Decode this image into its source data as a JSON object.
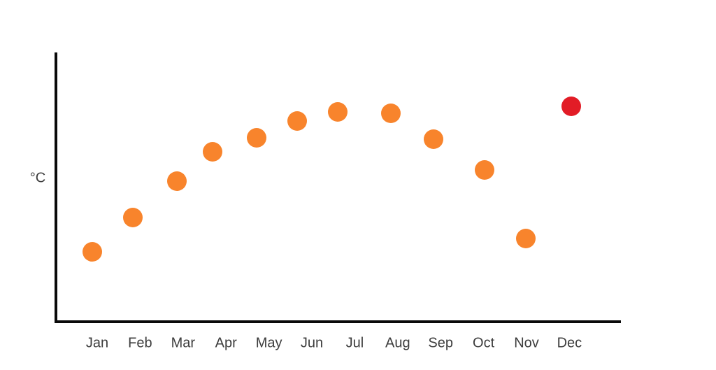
{
  "chart_data": {
    "type": "scatter",
    "title": "",
    "xlabel": "",
    "y_axis_label": "°C",
    "x_tick_labels": [
      "Jan",
      "Feb",
      "Mar",
      "Apr",
      "May",
      "Jun",
      "Jul",
      "Aug",
      "Sep",
      "Oct",
      "Nov",
      "Dec"
    ],
    "y_tick_labels_visible": false,
    "grid": false,
    "legend": false,
    "ylim": [
      0,
      30
    ],
    "y_values_estimated": true,
    "points": [
      {
        "month": "Jan",
        "x": 0.89,
        "value_c": 7.8,
        "color": "#F8842C",
        "highlighted": false
      },
      {
        "month": "Feb",
        "x": 1.83,
        "value_c": 11.6,
        "color": "#F8842C",
        "highlighted": false
      },
      {
        "month": "Mar",
        "x": 2.86,
        "value_c": 15.7,
        "color": "#F8842C",
        "highlighted": false
      },
      {
        "month": "Apr",
        "x": 3.69,
        "value_c": 18.9,
        "color": "#F8842C",
        "highlighted": false
      },
      {
        "month": "May",
        "x": 4.71,
        "value_c": 20.5,
        "color": "#F8842C",
        "highlighted": false
      },
      {
        "month": "Jun",
        "x": 5.66,
        "value_c": 22.4,
        "color": "#F8842C",
        "highlighted": false
      },
      {
        "month": "Jul",
        "x": 6.6,
        "value_c": 23.4,
        "color": "#F8842C",
        "highlighted": false
      },
      {
        "month": "Aug",
        "x": 7.84,
        "value_c": 23.2,
        "color": "#F8842C",
        "highlighted": false
      },
      {
        "month": "Sep",
        "x": 8.83,
        "value_c": 20.3,
        "color": "#F8842C",
        "highlighted": false
      },
      {
        "month": "Oct",
        "x": 10.02,
        "value_c": 16.9,
        "color": "#F8842C",
        "highlighted": false
      },
      {
        "month": "Nov",
        "x": 10.98,
        "value_c": 9.3,
        "color": "#F8842C",
        "highlighted": false
      },
      {
        "month": "Dec",
        "x": 12.04,
        "value_c": 24.0,
        "color": "#E21C26",
        "highlighted": true
      }
    ],
    "colors": {
      "normal_point": "#F8842C",
      "highlight_point": "#E21C26",
      "axis": "#0A0A0A",
      "label_text": "#3D3D3D"
    }
  }
}
